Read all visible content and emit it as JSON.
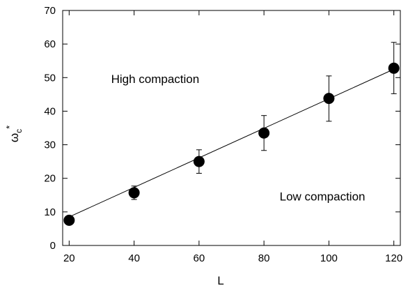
{
  "chart_data": {
    "type": "scatter",
    "title": "",
    "xlabel": "L",
    "ylabel": {
      "symbol": "ω",
      "subscript": "c",
      "superscript": "*"
    },
    "xlim": [
      18,
      122
    ],
    "ylim": [
      0,
      70
    ],
    "xticks": [
      20,
      40,
      60,
      80,
      100,
      120
    ],
    "yticks": [
      0,
      10,
      20,
      30,
      40,
      50,
      60,
      70
    ],
    "grid": false,
    "legend": "none",
    "series": [
      {
        "marker": "filled-circle",
        "color": "#000000",
        "points": [
          {
            "x": 20,
            "y": 7.5,
            "err_low": 7.5,
            "err_high": 7.5
          },
          {
            "x": 40,
            "y": 15.7,
            "err_low": 13.7,
            "err_high": 17.7
          },
          {
            "x": 60,
            "y": 25.0,
            "err_low": 21.5,
            "err_high": 28.5
          },
          {
            "x": 80,
            "y": 33.5,
            "err_low": 28.3,
            "err_high": 38.7
          },
          {
            "x": 100,
            "y": 43.8,
            "err_low": 37.0,
            "err_high": 50.5
          },
          {
            "x": 120,
            "y": 52.8,
            "err_low": 45.2,
            "err_high": 60.5
          }
        ]
      }
    ],
    "fit_line": {
      "x": [
        20,
        120
      ],
      "y": [
        8.5,
        52.5
      ]
    },
    "annotations": [
      {
        "text": "High compaction",
        "x": 46.5,
        "y": 49.6
      },
      {
        "text": "Low compaction",
        "x": 98.0,
        "y": 14.6
      }
    ]
  }
}
